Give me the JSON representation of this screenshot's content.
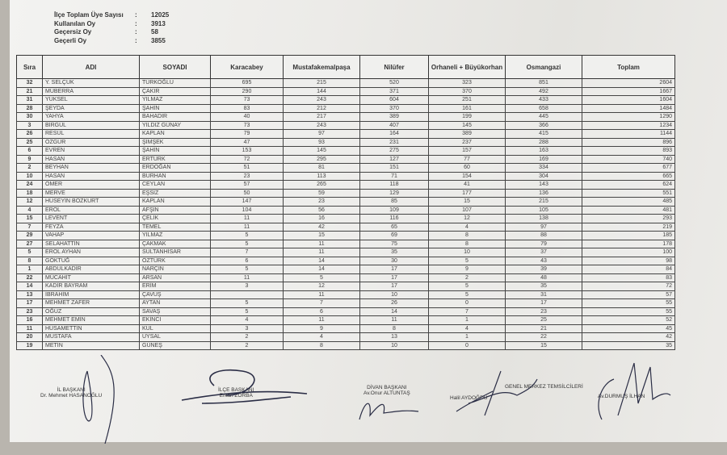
{
  "summary": [
    {
      "label": "İlçe Toplam Üye Sayısı",
      "value": "12025"
    },
    {
      "label": "Kullanılan Oy",
      "value": "3913"
    },
    {
      "label": "Geçersiz Oy",
      "value": "58"
    },
    {
      "label": "Geçerli Oy",
      "value": "3855"
    }
  ],
  "colon": ":",
  "table": {
    "headers": [
      "Sıra",
      "ADI",
      "SOYADI",
      "Karacabey",
      "Mustafakemalpaşa",
      "Nilüfer",
      "Orhaneli + Büyükorhan",
      "Osmangazi",
      "Toplam"
    ],
    "rows": [
      [
        "32",
        "Y. SELÇUK",
        "TÜRKOĞLU",
        "695",
        "215",
        "520",
        "323",
        "851",
        "2604"
      ],
      [
        "21",
        "MÜBERRA",
        "ÇAKIR",
        "290",
        "144",
        "371",
        "370",
        "492",
        "1667"
      ],
      [
        "31",
        "YÜKSEL",
        "YILMAZ",
        "73",
        "243",
        "604",
        "251",
        "433",
        "1604"
      ],
      [
        "28",
        "ŞEYDA",
        "ŞAHİN",
        "83",
        "212",
        "370",
        "161",
        "658",
        "1484"
      ],
      [
        "30",
        "YAHYA",
        "BAHADIR",
        "40",
        "217",
        "389",
        "199",
        "445",
        "1290"
      ],
      [
        "3",
        "BİRGÜL",
        "YILDIZ GÜNAY",
        "73",
        "243",
        "407",
        "145",
        "366",
        "1234"
      ],
      [
        "26",
        "RESÜL",
        "KAPLAN",
        "79",
        "97",
        "164",
        "389",
        "415",
        "1144"
      ],
      [
        "25",
        "ÖZGÜR",
        "ŞİMŞEK",
        "47",
        "93",
        "231",
        "237",
        "288",
        "896"
      ],
      [
        "6",
        "EVREN",
        "ŞAHİN",
        "153",
        "145",
        "275",
        "157",
        "163",
        "893"
      ],
      [
        "9",
        "HASAN",
        "ERTÜRK",
        "72",
        "295",
        "127",
        "77",
        "169",
        "740"
      ],
      [
        "2",
        "BEYHAN",
        "ERDOĞAN",
        "51",
        "81",
        "151",
        "60",
        "334",
        "677"
      ],
      [
        "10",
        "HASAN",
        "BURHAN",
        "23",
        "113",
        "71",
        "154",
        "304",
        "665"
      ],
      [
        "24",
        "ÖMER",
        "CEYLAN",
        "57",
        "265",
        "118",
        "41",
        "143",
        "624"
      ],
      [
        "18",
        "MERVE",
        "EŞSİZ",
        "50",
        "59",
        "129",
        "177",
        "136",
        "551"
      ],
      [
        "12",
        "HÜSEYİN BOZKURT",
        "KAPLAN",
        "147",
        "23",
        "85",
        "15",
        "215",
        "485"
      ],
      [
        "4",
        "EROL",
        "AFŞİN",
        "104",
        "56",
        "109",
        "107",
        "105",
        "481"
      ],
      [
        "15",
        "LEVENT",
        "ÇELİK",
        "11",
        "16",
        "116",
        "12",
        "138",
        "293"
      ],
      [
        "7",
        "FEYZA",
        "TEMEL",
        "11",
        "42",
        "65",
        "4",
        "97",
        "219"
      ],
      [
        "29",
        "VAHAP",
        "YILMAZ",
        "5",
        "15",
        "69",
        "8",
        "88",
        "185"
      ],
      [
        "27",
        "SELAHATTİN",
        "ÇAKMAK",
        "5",
        "11",
        "75",
        "8",
        "79",
        "178"
      ],
      [
        "5",
        "EROL AYHAN",
        "SULTANHİSAR",
        "7",
        "11",
        "35",
        "10",
        "37",
        "100"
      ],
      [
        "8",
        "GÖKTUĞ",
        "ÖZTÜRK",
        "6",
        "14",
        "30",
        "5",
        "43",
        "98"
      ],
      [
        "1",
        "ABDULKADİR",
        "NARÇIN",
        "5",
        "14",
        "17",
        "9",
        "39",
        "84"
      ],
      [
        "22",
        "MÜCAHİT",
        "ARSAN",
        "11",
        "5",
        "17",
        "2",
        "48",
        "83"
      ],
      [
        "14",
        "KADİR BAYRAM",
        "ERİM",
        "3",
        "12",
        "17",
        "5",
        "35",
        "72"
      ],
      [
        "13",
        "İBRAHİM",
        "ÇAVUŞ",
        "",
        "11",
        "10",
        "5",
        "31",
        "57"
      ],
      [
        "17",
        "MEHMET ZAFER",
        "AYTAN",
        "5",
        "7",
        "26",
        "0",
        "17",
        "55"
      ],
      [
        "23",
        "OĞUZ",
        "SAVAŞ",
        "5",
        "6",
        "14",
        "7",
        "23",
        "55"
      ],
      [
        "16",
        "MEHMET EMİN",
        "EKİNCİ",
        "4",
        "11",
        "11",
        "1",
        "25",
        "52"
      ],
      [
        "11",
        "HÜSAMETTİN",
        "KUL",
        "3",
        "9",
        "8",
        "4",
        "21",
        "45"
      ],
      [
        "20",
        "MUSTAFA",
        "UYSAL",
        "2",
        "4",
        "13",
        "1",
        "22",
        "42"
      ],
      [
        "19",
        "METİN",
        "GÜNEŞ",
        "2",
        "8",
        "10",
        "0",
        "15",
        "35"
      ]
    ]
  },
  "signatures": {
    "il_baskani": {
      "title": "İL BAŞKANI",
      "name": "Dr. Mehmet HASANOĞLU"
    },
    "ilce_baskani": {
      "title": "İLÇE BAŞKANI",
      "name": "Erkan ZORBA"
    },
    "divan_baskani": {
      "title": "DİVAN BAŞKANI",
      "name": "Av.Onur ALTUNTAŞ"
    },
    "genel_merkez": {
      "title": "GENEL MERKEZ TEMSİLCİLERİ",
      "name1": "Halil AYDOĞDU",
      "name2": "Av.DURMUŞ İLHAN"
    }
  }
}
